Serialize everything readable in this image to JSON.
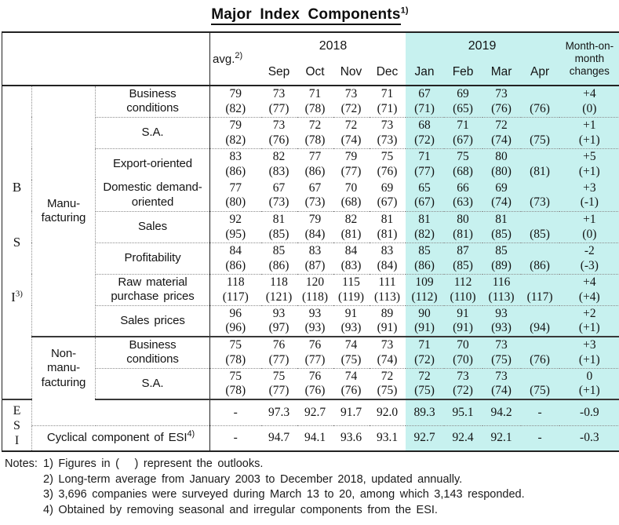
{
  "title": {
    "text": "Major Index Components",
    "sup": "1)"
  },
  "colors": {
    "highlight": "#c7f1ef"
  },
  "header": {
    "avg": {
      "text": "avg.",
      "sup": "2)"
    },
    "year_2018": "2018",
    "year_2019": "2019",
    "months_2018": [
      "Sep",
      "Oct",
      "Nov",
      "Dec"
    ],
    "months_2019": [
      "Jan",
      "Feb",
      "Mar",
      "Apr"
    ],
    "mom_lines": [
      "Month-on-",
      "month",
      "changes"
    ]
  },
  "table": {
    "bsi": {
      "letters": [
        "B",
        "S",
        "I"
      ],
      "sup": "3)",
      "manufacturing": {
        "label_lines": [
          "Manu-",
          "facturing"
        ],
        "rows": [
          {
            "label": "Business conditions",
            "indent": false,
            "values": [
              [
                "79",
                "(82)"
              ],
              [
                "73",
                "(77)"
              ],
              [
                "71",
                "(78)"
              ],
              [
                "73",
                "(72)"
              ],
              [
                "71",
                "(71)"
              ],
              [
                "67",
                "(71)"
              ],
              [
                "69",
                "(65)"
              ],
              [
                "73",
                "(76)"
              ],
              [
                "",
                "(76)"
              ],
              [
                "+4",
                "(0)"
              ]
            ]
          },
          {
            "label": "S.A.",
            "indent": true,
            "values": [
              [
                "79",
                "(82)"
              ],
              [
                "73",
                "(76)"
              ],
              [
                "72",
                "(78)"
              ],
              [
                "72",
                "(74)"
              ],
              [
                "73",
                "(73)"
              ],
              [
                "68",
                "(72)"
              ],
              [
                "71",
                "(67)"
              ],
              [
                "72",
                "(74)"
              ],
              [
                "",
                "(75)"
              ],
              [
                "+1",
                "(+1)"
              ]
            ]
          },
          {
            "label": "Export-oriented",
            "indent": true,
            "values": [
              [
                "83",
                "(86)"
              ],
              [
                "82",
                "(83)"
              ],
              [
                "77",
                "(86)"
              ],
              [
                "79",
                "(77)"
              ],
              [
                "75",
                "(76)"
              ],
              [
                "71",
                "(77)"
              ],
              [
                "75",
                "(68)"
              ],
              [
                "80",
                "(80)"
              ],
              [
                "",
                "(81)"
              ],
              [
                "+5",
                "(+1)"
              ]
            ]
          },
          {
            "label": "Domestic demand-oriented",
            "indent": true,
            "values": [
              [
                "77",
                "(80)"
              ],
              [
                "67",
                "(73)"
              ],
              [
                "67",
                "(73)"
              ],
              [
                "70",
                "(68)"
              ],
              [
                "69",
                "(67)"
              ],
              [
                "65",
                "(67)"
              ],
              [
                "66",
                "(63)"
              ],
              [
                "69",
                "(74)"
              ],
              [
                "",
                "(73)"
              ],
              [
                "+3",
                "(-1)"
              ]
            ]
          },
          {
            "label": "Sales",
            "indent": false,
            "values": [
              [
                "92",
                "(95)"
              ],
              [
                "81",
                "(85)"
              ],
              [
                "79",
                "(84)"
              ],
              [
                "82",
                "(81)"
              ],
              [
                "81",
                "(81)"
              ],
              [
                "81",
                "(82)"
              ],
              [
                "80",
                "(81)"
              ],
              [
                "81",
                "(85)"
              ],
              [
                "",
                "(85)"
              ],
              [
                "+1",
                "(0)"
              ]
            ]
          },
          {
            "label": "Profitability",
            "indent": false,
            "values": [
              [
                "84",
                "(86)"
              ],
              [
                "85",
                "(86)"
              ],
              [
                "83",
                "(87)"
              ],
              [
                "84",
                "(83)"
              ],
              [
                "83",
                "(84)"
              ],
              [
                "85",
                "(86)"
              ],
              [
                "87",
                "(85)"
              ],
              [
                "85",
                "(89)"
              ],
              [
                "",
                "(86)"
              ],
              [
                "-2",
                "(-3)"
              ]
            ]
          },
          {
            "label": "Raw material purchase prices",
            "indent": false,
            "values": [
              [
                "118",
                "(117)"
              ],
              [
                "118",
                "(121)"
              ],
              [
                "120",
                "(118)"
              ],
              [
                "115",
                "(119)"
              ],
              [
                "111",
                "(113)"
              ],
              [
                "109",
                "(112)"
              ],
              [
                "112",
                "(110)"
              ],
              [
                "116",
                "(113)"
              ],
              [
                "",
                "(117)"
              ],
              [
                "+4",
                "(+4)"
              ]
            ]
          },
          {
            "label": "Sales prices",
            "indent": false,
            "values": [
              [
                "96",
                "(96)"
              ],
              [
                "93",
                "(97)"
              ],
              [
                "93",
                "(93)"
              ],
              [
                "91",
                "(93)"
              ],
              [
                "89",
                "(91)"
              ],
              [
                "90",
                "(91)"
              ],
              [
                "91",
                "(91)"
              ],
              [
                "93",
                "(93)"
              ],
              [
                "",
                "(94)"
              ],
              [
                "+2",
                "(+1)"
              ]
            ]
          }
        ]
      },
      "non_manufacturing": {
        "label_lines": [
          "Non-",
          "manu-",
          "facturing"
        ],
        "rows": [
          {
            "label": "Business conditions",
            "indent": false,
            "values": [
              [
                "75",
                "(78)"
              ],
              [
                "76",
                "(77)"
              ],
              [
                "76",
                "(77)"
              ],
              [
                "74",
                "(75)"
              ],
              [
                "73",
                "(74)"
              ],
              [
                "71",
                "(72)"
              ],
              [
                "70",
                "(70)"
              ],
              [
                "73",
                "(75)"
              ],
              [
                "",
                "(76)"
              ],
              [
                "+3",
                "(+1)"
              ]
            ]
          },
          {
            "label": "S.A.",
            "indent": true,
            "values": [
              [
                "75",
                "(78)"
              ],
              [
                "75",
                "(77)"
              ],
              [
                "76",
                "(76)"
              ],
              [
                "74",
                "(76)"
              ],
              [
                "72",
                "(75)"
              ],
              [
                "72",
                "(75)"
              ],
              [
                "73",
                "(72)"
              ],
              [
                "73",
                "(74)"
              ],
              [
                "",
                "(75)"
              ],
              [
                "0",
                "(+1)"
              ]
            ]
          }
        ]
      }
    },
    "esi": {
      "letters": [
        "E",
        "S",
        "I"
      ],
      "rows": [
        {
          "label": "",
          "values": [
            "-",
            "97.3",
            "92.7",
            "91.7",
            "92.0",
            "89.3",
            "95.1",
            "94.2",
            "-",
            "-0.9"
          ]
        },
        {
          "label": "Cyclical component of ESI",
          "label_sup": "4)",
          "indent": true,
          "values": [
            "-",
            "94.7",
            "94.1",
            "93.6",
            "93.1",
            "92.7",
            "92.4",
            "92.1",
            "-",
            "-0.3"
          ]
        }
      ]
    }
  },
  "notes": {
    "prefix": "Notes:",
    "items": [
      "1) Figures in (   ) represent the outlooks.",
      "2) Long-term average from January 2003 to December 2018, updated annually.",
      "3) 3,696 companies were surveyed during March 13 to 20, among which 3,143 responded.",
      "4) Obtained by removing seasonal and irregular components from the ESI."
    ]
  }
}
